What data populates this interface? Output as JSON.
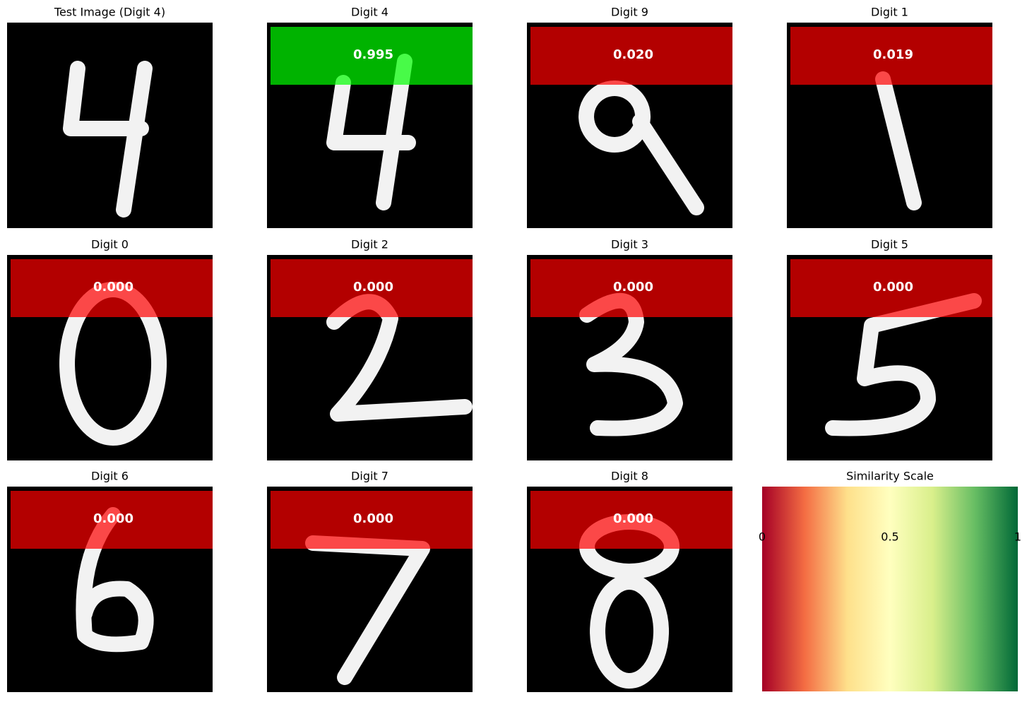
{
  "panels": [
    {
      "title": "Test Image (Digit 4)"
    },
    {
      "title": "Digit 4",
      "score_label": "0.995",
      "band_color": "#00ff00"
    },
    {
      "title": "Digit 9",
      "score_label": "0.020",
      "band_color": "#ff0000"
    },
    {
      "title": "Digit 1",
      "score_label": "0.019",
      "band_color": "#ff0000"
    },
    {
      "title": "Digit 0",
      "score_label": "0.000",
      "band_color": "#ff0000"
    },
    {
      "title": "Digit 2",
      "score_label": "0.000",
      "band_color": "#ff0000"
    },
    {
      "title": "Digit 3",
      "score_label": "0.000",
      "band_color": "#ff0000"
    },
    {
      "title": "Digit 5",
      "score_label": "0.000",
      "band_color": "#ff0000"
    },
    {
      "title": "Digit 6",
      "score_label": "0.000",
      "band_color": "#ff0000"
    },
    {
      "title": "Digit 7",
      "score_label": "0.000",
      "band_color": "#ff0000"
    },
    {
      "title": "Digit 8",
      "score_label": "0.000",
      "band_color": "#ff0000"
    }
  ],
  "colorbar": {
    "title": "Similarity Scale",
    "xlim": [
      0,
      1
    ],
    "ticks": [
      0,
      0.5,
      1
    ],
    "colors": [
      "#a50026",
      "#f46d43",
      "#fee08b",
      "#ffffbf",
      "#d9ef8b",
      "#66bd63",
      "#006837"
    ]
  }
}
